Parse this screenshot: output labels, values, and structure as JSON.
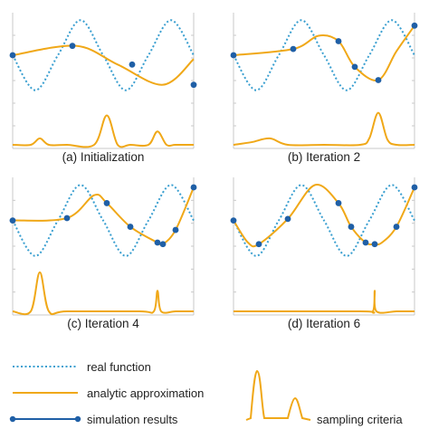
{
  "colors": {
    "real": "#3a9fd0",
    "approx": "#f0a818",
    "sim": "#1f5fa6",
    "axis": "#c8c8c8"
  },
  "legend": {
    "real": "real function",
    "approx": "analytic approximation",
    "sim": "simulation results",
    "sampling": "sampling criteria"
  },
  "chart_data": [
    {
      "type": "line",
      "caption": "(a) Initialization",
      "xlim": [
        0,
        1
      ],
      "ylim": [
        0,
        1
      ],
      "series": [
        {
          "key": "real",
          "style": "dotted",
          "x": [
            0,
            0.125,
            0.25,
            0.375,
            0.5,
            0.625,
            0.75,
            0.875,
            1
          ],
          "y": [
            0.5,
            0.05,
            0.5,
            0.95,
            0.5,
            0.05,
            0.5,
            0.95,
            0.5
          ]
        },
        {
          "key": "approx",
          "style": "solid",
          "x": [
            0,
            0.35,
            0.58,
            0.83,
            1
          ],
          "y": [
            0.5,
            0.62,
            0.38,
            0.12,
            0.45
          ]
        },
        {
          "key": "sim",
          "style": "solid",
          "markers": true,
          "x": [
            0,
            0.33,
            0.66,
            1
          ],
          "y": [
            0.5,
            0.62,
            0.38,
            0.12
          ]
        }
      ],
      "criteria": {
        "x": [
          0,
          0.1,
          0.15,
          0.2,
          0.3,
          0.45,
          0.52,
          0.58,
          0.65,
          0.75,
          0.8,
          0.85,
          0.9,
          1
        ],
        "y": [
          0,
          0,
          0.12,
          0,
          0,
          0,
          0.55,
          0,
          0,
          0,
          0.25,
          0,
          0,
          0
        ]
      }
    },
    {
      "type": "line",
      "caption": "(b) Iteration 2",
      "xlim": [
        0,
        1
      ],
      "ylim": [
        0,
        1
      ],
      "series": [
        {
          "key": "real",
          "style": "dotted",
          "x": [
            0,
            0.125,
            0.25,
            0.375,
            0.5,
            0.625,
            0.75,
            0.875,
            1
          ],
          "y": [
            0.5,
            0.05,
            0.5,
            0.95,
            0.5,
            0.05,
            0.5,
            0.95,
            0.5
          ]
        },
        {
          "key": "approx",
          "style": "solid",
          "x": [
            0,
            0.33,
            0.47,
            0.58,
            0.67,
            0.8,
            0.9,
            1
          ],
          "y": [
            0.5,
            0.58,
            0.75,
            0.68,
            0.35,
            0.18,
            0.55,
            0.88
          ]
        },
        {
          "key": "sim",
          "style": "solid",
          "markers": true,
          "x": [
            0,
            0.33,
            0.58,
            0.67,
            0.8,
            1
          ],
          "y": [
            0.5,
            0.58,
            0.68,
            0.35,
            0.18,
            0.88
          ]
        }
      ],
      "criteria": {
        "x": [
          0,
          0.1,
          0.2,
          0.3,
          0.5,
          0.7,
          0.75,
          0.8,
          0.85,
          0.9,
          1
        ],
        "y": [
          0,
          0.05,
          0.12,
          0,
          0,
          0,
          0.12,
          0.6,
          0.1,
          0,
          0
        ]
      }
    },
    {
      "type": "line",
      "caption": "(c) Iteration 4",
      "xlim": [
        0,
        1
      ],
      "ylim": [
        0,
        1
      ],
      "series": [
        {
          "key": "real",
          "style": "dotted",
          "x": [
            0,
            0.125,
            0.25,
            0.375,
            0.5,
            0.625,
            0.75,
            0.875,
            1
          ],
          "y": [
            0.5,
            0.05,
            0.5,
            0.95,
            0.5,
            0.05,
            0.5,
            0.95,
            0.5
          ]
        },
        {
          "key": "approx",
          "style": "solid",
          "x": [
            0,
            0.3,
            0.45,
            0.52,
            0.65,
            0.8,
            0.83,
            0.9,
            1
          ],
          "y": [
            0.5,
            0.53,
            0.82,
            0.72,
            0.42,
            0.22,
            0.2,
            0.38,
            0.92
          ]
        },
        {
          "key": "sim",
          "style": "solid",
          "markers": true,
          "x": [
            0,
            0.3,
            0.52,
            0.65,
            0.8,
            0.83,
            0.9,
            1
          ],
          "y": [
            0.5,
            0.53,
            0.72,
            0.42,
            0.22,
            0.2,
            0.38,
            0.92
          ]
        }
      ],
      "criteria": {
        "x": [
          0,
          0.1,
          0.15,
          0.2,
          0.3,
          0.7,
          0.78,
          0.8,
          0.82,
          0.9,
          1
        ],
        "y": [
          0,
          0,
          0.72,
          0,
          0,
          0,
          0,
          0.38,
          0,
          0,
          0
        ]
      }
    },
    {
      "type": "line",
      "caption": "(d) Iteration 6",
      "xlim": [
        0,
        1
      ],
      "ylim": [
        0,
        1
      ],
      "series": [
        {
          "key": "real",
          "style": "dotted",
          "x": [
            0,
            0.125,
            0.25,
            0.375,
            0.5,
            0.625,
            0.75,
            0.875,
            1
          ],
          "y": [
            0.5,
            0.05,
            0.5,
            0.95,
            0.5,
            0.05,
            0.5,
            0.95,
            0.5
          ]
        },
        {
          "key": "approx",
          "style": "solid",
          "x": [
            0,
            0.08,
            0.14,
            0.3,
            0.45,
            0.58,
            0.65,
            0.73,
            0.78,
            0.82,
            0.9,
            1
          ],
          "y": [
            0.5,
            0.22,
            0.2,
            0.52,
            0.95,
            0.72,
            0.42,
            0.22,
            0.2,
            0.22,
            0.42,
            0.92
          ]
        },
        {
          "key": "sim",
          "style": "solid",
          "markers": true,
          "x": [
            0,
            0.14,
            0.3,
            0.58,
            0.65,
            0.73,
            0.78,
            0.9,
            1
          ],
          "y": [
            0.5,
            0.2,
            0.52,
            0.72,
            0.42,
            0.22,
            0.2,
            0.42,
            0.92
          ]
        }
      ],
      "criteria": {
        "x": [
          0,
          0.7,
          0.77,
          0.78,
          0.79,
          0.9,
          1
        ],
        "y": [
          0,
          0,
          0,
          0.38,
          0,
          0,
          0
        ]
      }
    }
  ]
}
